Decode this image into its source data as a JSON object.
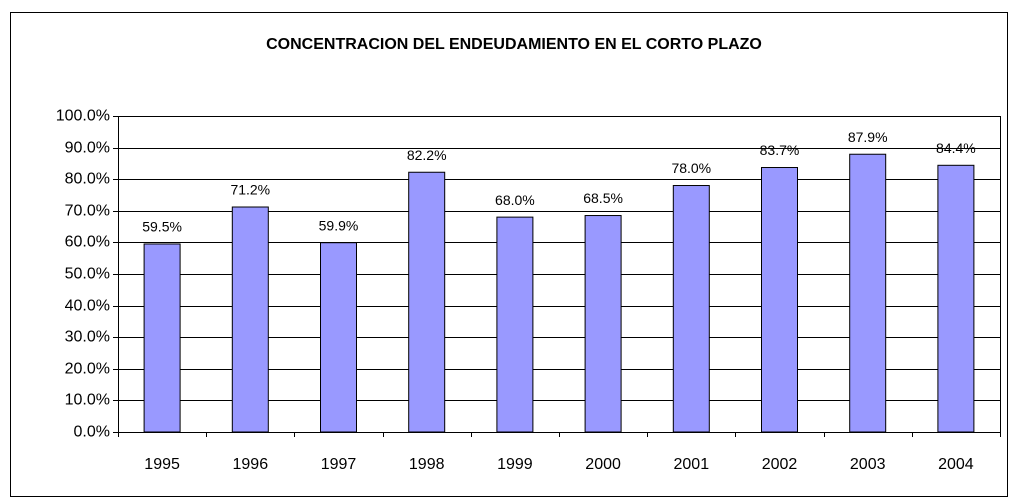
{
  "chart_data": {
    "type": "bar",
    "title": "CONCENTRACION DEL ENDEUDAMIENTO EN EL CORTO PLAZO",
    "categories": [
      "1995",
      "1996",
      "1997",
      "1998",
      "1999",
      "2000",
      "2001",
      "2002",
      "2003",
      "2004"
    ],
    "values": [
      59.5,
      71.2,
      59.9,
      82.2,
      68.0,
      68.5,
      78.0,
      83.7,
      87.9,
      84.4
    ],
    "value_labels": [
      "59.5%",
      "71.2%",
      "59.9%",
      "82.2%",
      "68.0%",
      "68.5%",
      "78.0%",
      "83.7%",
      "87.9%",
      "84.4%"
    ],
    "color": "#9999ff",
    "ylim": [
      0,
      100
    ],
    "yticks": [
      {
        "value": 0,
        "label": "0.0%"
      },
      {
        "value": 10,
        "label": "10.0%"
      },
      {
        "value": 20,
        "label": "20.0%"
      },
      {
        "value": 30,
        "label": "30.0%"
      },
      {
        "value": 40,
        "label": "40.0%"
      },
      {
        "value": 50,
        "label": "50.0%"
      },
      {
        "value": 60,
        "label": "60.0%"
      },
      {
        "value": 70,
        "label": "70.0%"
      },
      {
        "value": 80,
        "label": "80.0%"
      },
      {
        "value": 90,
        "label": "90.0%"
      },
      {
        "value": 100,
        "label": "100.0%"
      }
    ],
    "grid": true
  }
}
